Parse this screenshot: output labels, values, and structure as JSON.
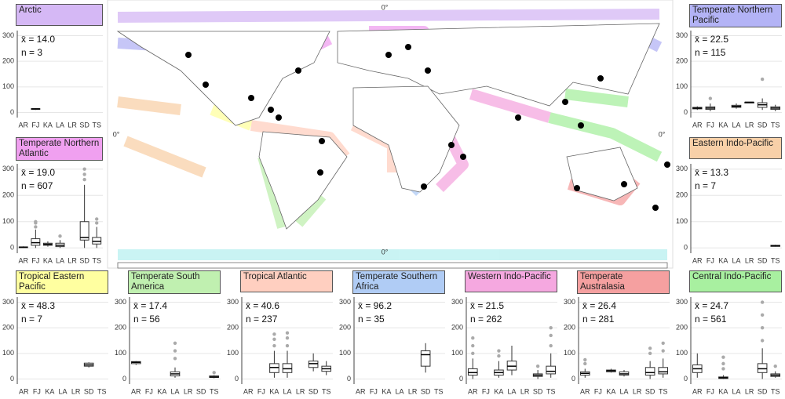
{
  "map": {
    "labels": [
      "0°",
      "0°",
      "0°",
      "0°"
    ]
  },
  "chart_data": [
    {
      "type": "boxplot",
      "title": "Arctic",
      "color": "#d5b8f5",
      "annotations": [
        "x̄ = 14.0",
        "n = 3"
      ],
      "categories": [
        "AR",
        "FJ",
        "KA",
        "LA",
        "LR",
        "SD",
        "TS"
      ],
      "ylim": [
        -20,
        320
      ],
      "yticks": [
        0,
        100,
        200,
        300
      ],
      "grid": true,
      "boxes": [
        null,
        [
          10,
          12,
          14,
          15,
          17
        ],
        null,
        null,
        null,
        null,
        null
      ],
      "outliers": [
        [],
        [],
        [],
        [],
        [],
        [],
        []
      ]
    },
    {
      "type": "boxplot",
      "title": "Temperate Northern Atlantic",
      "color": "#f0a0f0",
      "annotations": [
        "x̄ = 19.0",
        "n = 607"
      ],
      "categories": [
        "AR",
        "FJ",
        "KA",
        "LA",
        "LR",
        "SD",
        "TS"
      ],
      "ylim": [
        -20,
        320
      ],
      "yticks": [
        0,
        100,
        200,
        300
      ],
      "grid": true,
      "boxes": [
        [
          0,
          2,
          3,
          4,
          6
        ],
        [
          0,
          10,
          20,
          35,
          70
        ],
        [
          5,
          10,
          14,
          18,
          25
        ],
        [
          0,
          5,
          10,
          18,
          30
        ],
        null,
        [
          0,
          30,
          40,
          100,
          240
        ],
        [
          0,
          15,
          25,
          40,
          80
        ]
      ],
      "outliers": [
        [],
        [
          80,
          95,
          100
        ],
        [],
        [
          45
        ],
        [],
        [
          260,
          280,
          300
        ],
        [
          95,
          110
        ]
      ]
    },
    {
      "type": "boxplot",
      "title": "Temperate Northern Pacific",
      "color": "#b3b3f5",
      "annotations": [
        "x̄ = 22.5",
        "n = 115"
      ],
      "categories": [
        "AR",
        "FJ",
        "KA",
        "LA",
        "LR",
        "SD",
        "TS"
      ],
      "ylim": [
        -20,
        320
      ],
      "yticks": [
        0,
        100,
        200,
        300
      ],
      "grid": true,
      "boxes": [
        [
          10,
          14,
          17,
          20,
          24
        ],
        [
          5,
          12,
          17,
          22,
          35
        ],
        null,
        [
          15,
          20,
          24,
          28,
          35
        ],
        [
          40,
          40,
          40,
          40,
          40
        ],
        [
          10,
          20,
          30,
          38,
          55
        ],
        [
          5,
          12,
          17,
          22,
          30
        ]
      ],
      "outliers": [
        [],
        [
          55
        ],
        [],
        [],
        [],
        [
          130
        ],
        []
      ]
    },
    {
      "type": "boxplot",
      "title": "Eastern Indo-Pacific",
      "color": "#f8d0a8",
      "annotations": [
        "x̄ = 13.3",
        "n = 7"
      ],
      "categories": [
        "AR",
        "FJ",
        "KA",
        "LA",
        "LR",
        "SD",
        "TS"
      ],
      "ylim": [
        -20,
        320
      ],
      "yticks": [
        0,
        100,
        200,
        300
      ],
      "grid": true,
      "boxes": [
        null,
        null,
        null,
        null,
        null,
        null,
        [
          5,
          6,
          8,
          10,
          12
        ]
      ],
      "outliers": [
        [],
        [],
        [],
        [],
        [],
        [],
        []
      ]
    },
    {
      "type": "boxplot",
      "title": "Tropical Eastern Pacific",
      "color": "#ffffa0",
      "annotations": [
        "x̄ = 48.3",
        "n = 7"
      ],
      "categories": [
        "AR",
        "FJ",
        "KA",
        "LA",
        "LR",
        "SD",
        "TS"
      ],
      "ylim": [
        -20,
        320
      ],
      "yticks": [
        0,
        100,
        200,
        300
      ],
      "grid": true,
      "boxes": [
        null,
        null,
        null,
        null,
        null,
        [
          45,
          50,
          55,
          62,
          65
        ],
        null
      ],
      "outliers": [
        [],
        [],
        [],
        [],
        [],
        [],
        []
      ]
    },
    {
      "type": "boxplot",
      "title": "Temperate South America",
      "color": "#c0f0b0",
      "annotations": [
        "x̄ = 17.4",
        "n = 56"
      ],
      "categories": [
        "AR",
        "FJ",
        "KA",
        "LA",
        "LR",
        "SD",
        "TS"
      ],
      "ylim": [
        -20,
        320
      ],
      "yticks": [
        0,
        100,
        200,
        300
      ],
      "grid": true,
      "boxes": [
        [
          55,
          60,
          65,
          68,
          70
        ],
        null,
        null,
        [
          5,
          12,
          20,
          28,
          45
        ],
        null,
        null,
        [
          3,
          6,
          8,
          12,
          15
        ]
      ],
      "outliers": [
        [],
        [],
        [],
        [
          80,
          110,
          140
        ],
        [],
        [],
        [
          25
        ]
      ]
    },
    {
      "type": "boxplot",
      "title": "Tropical Atlantic",
      "color": "#ffcfc0",
      "annotations": [
        "x̄ = 40.6",
        "n = 237"
      ],
      "categories": [
        "AR",
        "FJ",
        "KA",
        "LA",
        "LR",
        "SD",
        "TS"
      ],
      "ylim": [
        -20,
        320
      ],
      "yticks": [
        0,
        100,
        200,
        300
      ],
      "grid": true,
      "boxes": [
        null,
        null,
        [
          5,
          25,
          45,
          60,
          110
        ],
        [
          5,
          25,
          40,
          60,
          110
        ],
        null,
        [
          30,
          45,
          60,
          70,
          100
        ],
        [
          15,
          30,
          40,
          50,
          70
        ]
      ],
      "outliers": [
        [],
        [],
        [
          130,
          155,
          175
        ],
        [
          130,
          160,
          180
        ],
        [],
        [],
        []
      ]
    },
    {
      "type": "boxplot",
      "title": "Temperate Southern Africa",
      "color": "#b0ccf5",
      "annotations": [
        "x̄ = 96.2",
        "n = 35"
      ],
      "categories": [
        "AR",
        "FJ",
        "KA",
        "LA",
        "LR",
        "SD",
        "TS"
      ],
      "ylim": [
        -20,
        320
      ],
      "yticks": [
        0,
        100,
        200,
        300
      ],
      "grid": true,
      "boxes": [
        null,
        null,
        null,
        null,
        null,
        [
          25,
          50,
          95,
          110,
          140
        ],
        null
      ],
      "outliers": [
        [],
        [],
        [],
        [],
        [],
        [],
        []
      ]
    },
    {
      "type": "boxplot",
      "title": "Western Indo-Pacific",
      "color": "#f5a8e0",
      "annotations": [
        "x̄ = 21.5",
        "n = 262"
      ],
      "categories": [
        "AR",
        "FJ",
        "KA",
        "LA",
        "LR",
        "SD",
        "TS"
      ],
      "ylim": [
        -20,
        320
      ],
      "yticks": [
        0,
        100,
        200,
        300
      ],
      "grid": true,
      "boxes": [
        [
          0,
          15,
          25,
          40,
          80
        ],
        null,
        [
          5,
          15,
          25,
          35,
          70
        ],
        [
          15,
          35,
          50,
          70,
          130
        ],
        null,
        [
          0,
          10,
          15,
          20,
          35
        ],
        [
          5,
          20,
          30,
          50,
          100
        ]
      ],
      "outliers": [
        [
          100,
          130,
          160
        ],
        [],
        [
          90,
          110
        ],
        [],
        [],
        [
          50
        ],
        [
          130,
          170,
          200
        ]
      ]
    },
    {
      "type": "boxplot",
      "title": "Temperate Australasia",
      "color": "#f5a0a0",
      "annotations": [
        "x̄ = 26.4",
        "n = 281"
      ],
      "categories": [
        "AR",
        "FJ",
        "KA",
        "LA",
        "LR",
        "SD",
        "TS"
      ],
      "ylim": [
        -20,
        320
      ],
      "yticks": [
        0,
        100,
        200,
        300
      ],
      "grid": true,
      "boxes": [
        [
          5,
          15,
          22,
          28,
          40
        ],
        null,
        [
          25,
          28,
          32,
          35,
          40
        ],
        [
          10,
          15,
          20,
          28,
          35
        ],
        null,
        [
          0,
          15,
          25,
          45,
          70
        ],
        [
          5,
          20,
          28,
          45,
          80
        ]
      ],
      "outliers": [
        [
          60,
          75
        ],
        [],
        [],
        [],
        [],
        [
          100,
          120
        ],
        [
          110,
          140
        ]
      ]
    },
    {
      "type": "boxplot",
      "title": "Central Indo-Pacific",
      "color": "#a8f0a0",
      "annotations": [
        "x̄ = 24.7",
        "n = 561"
      ],
      "categories": [
        "AR",
        "FJ",
        "KA",
        "LA",
        "LR",
        "SD",
        "TS"
      ],
      "ylim": [
        -20,
        320
      ],
      "yticks": [
        0,
        100,
        200,
        300
      ],
      "grid": true,
      "boxes": [
        [
          5,
          25,
          40,
          55,
          100
        ],
        null,
        [
          0,
          2,
          5,
          8,
          15
        ],
        null,
        null,
        [
          0,
          25,
          40,
          60,
          120
        ],
        [
          5,
          10,
          15,
          20,
          30
        ]
      ],
      "outliers": [
        [],
        [],
        [
          40,
          60,
          85
        ],
        [],
        [],
        [
          150,
          200,
          250,
          300
        ],
        [
          50
        ]
      ]
    }
  ]
}
